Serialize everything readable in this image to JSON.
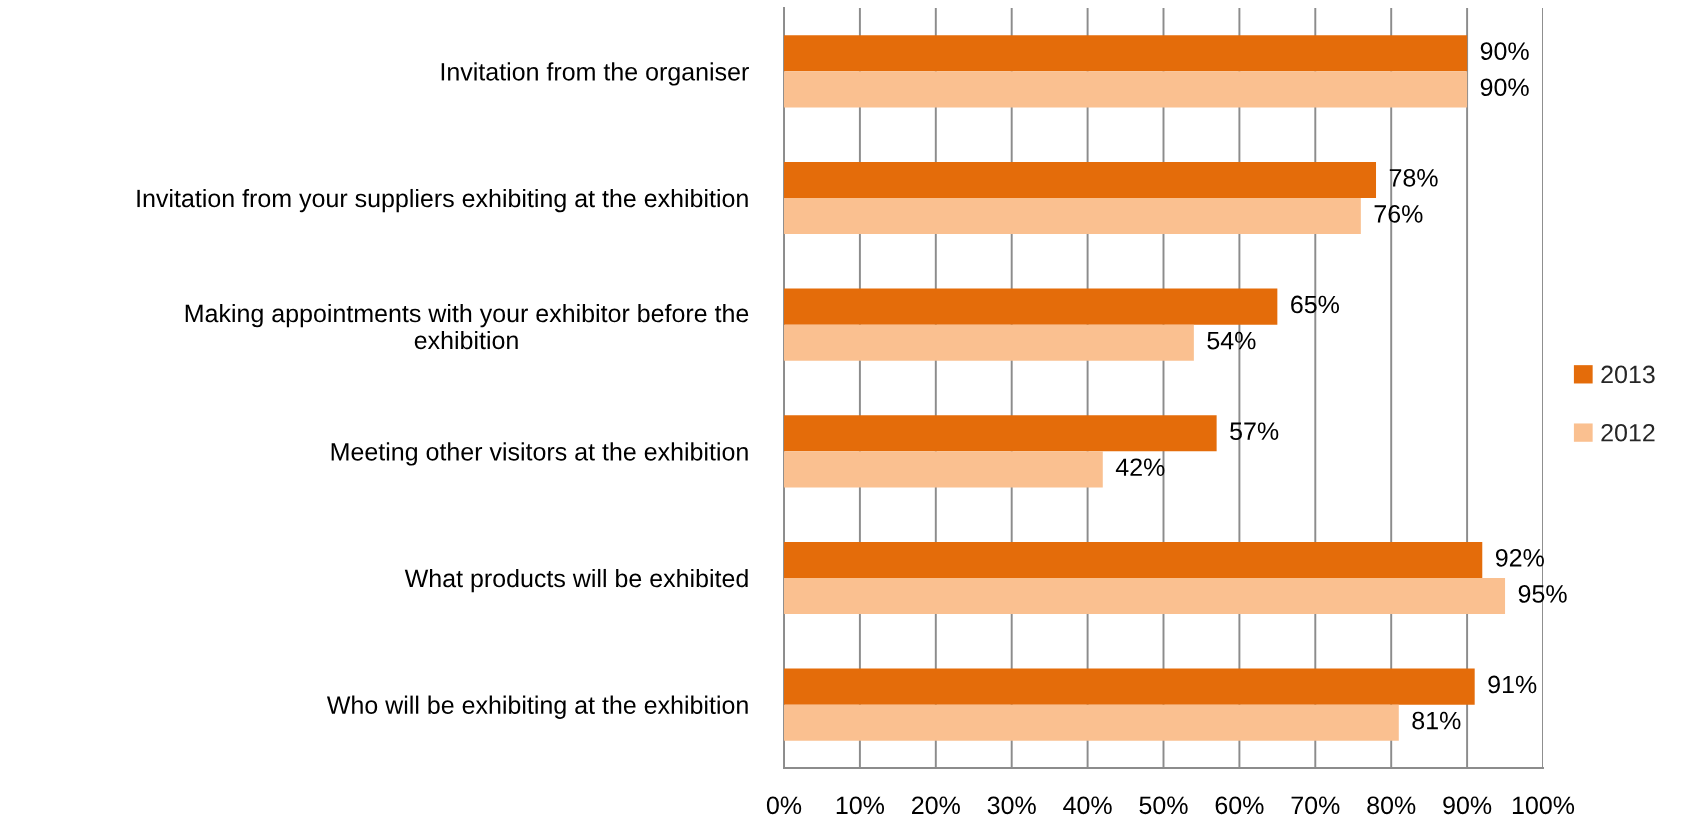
{
  "chart_data": {
    "type": "bar",
    "orientation": "horizontal",
    "categories": [
      "Invitation from the organiser",
      "Invitation from your suppliers exhibiting at the exhibition",
      "Making appointments with your exhibitor before the\nexhibition",
      "Meeting other visitors at the exhibition",
      "What products will be exhibited",
      "Who will be exhibiting at the exhibition"
    ],
    "series": [
      {
        "name": "2013",
        "color": "#e46c0a",
        "values": [
          90,
          78,
          65,
          57,
          92,
          91
        ],
        "value_labels": [
          "90%",
          "78%",
          "65%",
          "57%",
          "92%",
          "91%"
        ]
      },
      {
        "name": "2012",
        "color": "#fac090",
        "values": [
          90,
          76,
          54,
          42,
          95,
          81
        ],
        "value_labels": [
          "90%",
          "76%",
          "54%",
          "42%",
          "95%",
          "81%"
        ]
      }
    ],
    "xlim": [
      0,
      100
    ],
    "xticks": [
      {
        "value": 0,
        "label": "0%"
      },
      {
        "value": 10,
        "label": "10%"
      },
      {
        "value": 20,
        "label": "20%"
      },
      {
        "value": 30,
        "label": "30%"
      },
      {
        "value": 40,
        "label": "40%"
      },
      {
        "value": 50,
        "label": "50%"
      },
      {
        "value": 60,
        "label": "60%"
      },
      {
        "value": 70,
        "label": "70%"
      },
      {
        "value": 80,
        "label": "80%"
      },
      {
        "value": 90,
        "label": "90%"
      },
      {
        "value": 100,
        "label": "100%"
      }
    ],
    "grid": "x",
    "legend": "right"
  }
}
